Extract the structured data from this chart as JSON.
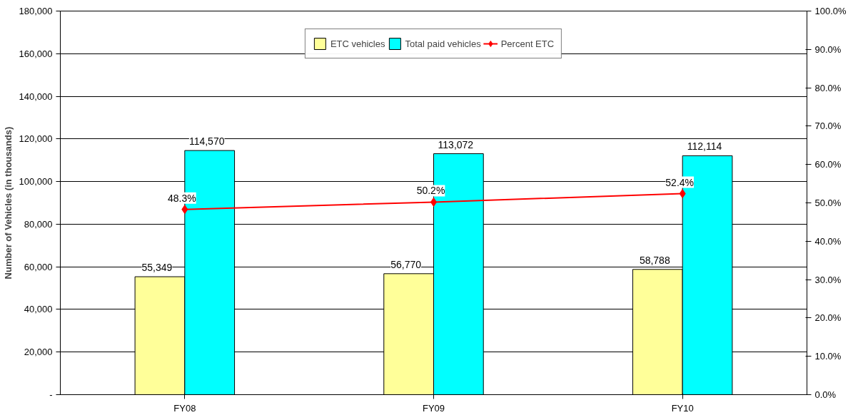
{
  "chart_data": {
    "type": "bar",
    "categories": [
      "FY08",
      "FY09",
      "FY10"
    ],
    "ylabel": "Number of Vehicles (in thousands)",
    "series": [
      {
        "name": "ETC vehicles",
        "color": "#ffff99",
        "values": [
          55349,
          56770,
          58788
        ],
        "value_labels": [
          "55,349",
          "56,770",
          "58,788"
        ]
      },
      {
        "name": "Total paid vehicles",
        "color": "#00ffff",
        "values": [
          114570,
          113072,
          112114
        ],
        "value_labels": [
          "114,570",
          "113,072",
          "112,114"
        ]
      },
      {
        "name": "Percent ETC",
        "type": "line",
        "axis": "y2",
        "color": "#ff0000",
        "marker": "diamond",
        "values": [
          48.3,
          50.2,
          52.4
        ],
        "value_labels": [
          "48.3%",
          "50.2%",
          "52.4%"
        ]
      }
    ],
    "ylim": [
      0,
      180000
    ],
    "yticks": [
      {
        "value": 0,
        "label": "-"
      },
      {
        "value": 20000,
        "label": "20,000"
      },
      {
        "value": 40000,
        "label": "40,000"
      },
      {
        "value": 60000,
        "label": "60,000"
      },
      {
        "value": 80000,
        "label": "80,000"
      },
      {
        "value": 100000,
        "label": "100,000"
      },
      {
        "value": 120000,
        "label": "120,000"
      },
      {
        "value": 140000,
        "label": "140,000"
      },
      {
        "value": 160000,
        "label": "160,000"
      },
      {
        "value": 180000,
        "label": "180,000"
      }
    ],
    "y2lim": [
      0,
      100
    ],
    "y2ticks": [
      {
        "value": 0,
        "label": "0.0%"
      },
      {
        "value": 10,
        "label": "10.0%"
      },
      {
        "value": 20,
        "label": "20.0%"
      },
      {
        "value": 30,
        "label": "30.0%"
      },
      {
        "value": 40,
        "label": "40.0%"
      },
      {
        "value": 50,
        "label": "50.0%"
      },
      {
        "value": 60,
        "label": "60.0%"
      },
      {
        "value": 70,
        "label": "70.0%"
      },
      {
        "value": 80,
        "label": "80.0%"
      },
      {
        "value": 90,
        "label": "90.0%"
      },
      {
        "value": 100,
        "label": "100.0%"
      }
    ],
    "grid": "y",
    "legend": "top"
  }
}
